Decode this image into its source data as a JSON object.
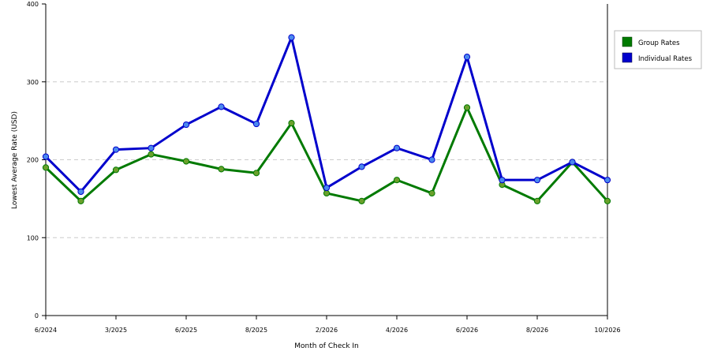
{
  "chart_data": {
    "type": "line",
    "xlabel": "Month of Check In",
    "ylabel": "Lowest Average Rate (USD)",
    "ylim": [
      0,
      400
    ],
    "yticks": [
      0,
      100,
      200,
      300,
      400
    ],
    "grid": "horizontal dashed",
    "legend_position": "right",
    "x_tick_labels": [
      {
        "index": 0,
        "label": "6/2024"
      },
      {
        "index": 2,
        "label": "3/2025"
      },
      {
        "index": 4,
        "label": "6/2025"
      },
      {
        "index": 6,
        "label": "8/2025"
      },
      {
        "index": 8,
        "label": "2/2026"
      },
      {
        "index": 10,
        "label": "4/2026"
      },
      {
        "index": 12,
        "label": "6/2026"
      },
      {
        "index": 14,
        "label": "8/2026"
      },
      {
        "index": 16,
        "label": "10/2026"
      }
    ],
    "series": [
      {
        "name": "Group Rates",
        "color": "#007a00",
        "values": [
          190,
          147,
          187,
          207,
          198,
          188,
          183,
          247,
          157,
          147,
          174,
          157,
          267,
          168,
          147,
          197,
          147
        ]
      },
      {
        "name": "Individual Rates",
        "color": "#0000cc",
        "values": [
          204,
          159,
          213,
          215,
          245,
          268,
          246,
          357,
          164,
          191,
          215,
          200,
          332,
          174,
          174,
          197,
          174
        ]
      }
    ]
  }
}
